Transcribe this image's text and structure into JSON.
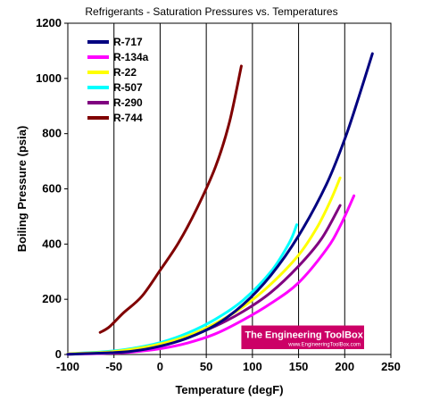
{
  "chart_data": {
    "type": "line",
    "title": "Refrigerants - Saturation Pressures vs. Temperatures",
    "xlabel": "Temperature (degF)",
    "ylabel": "Boiling Pressure (psia)",
    "xlim": [
      -100,
      250
    ],
    "ylim": [
      0,
      1200
    ],
    "x_ticks": [
      -100,
      -50,
      0,
      50,
      100,
      150,
      200,
      250
    ],
    "y_ticks": [
      0,
      200,
      400,
      600,
      800,
      1000,
      1200
    ],
    "grid": "vertical",
    "legend_position": "top-left",
    "series": [
      {
        "name": "R-717",
        "color": "#000080",
        "points": [
          [
            -100,
            1
          ],
          [
            -60,
            5.5
          ],
          [
            -30,
            12
          ],
          [
            0,
            30
          ],
          [
            30,
            60
          ],
          [
            60,
            107
          ],
          [
            90,
            181
          ],
          [
            120,
            287
          ],
          [
            150,
            430
          ],
          [
            180,
            615
          ],
          [
            200,
            780
          ],
          [
            215,
            930
          ],
          [
            230,
            1090
          ]
        ]
      },
      {
        "name": "R-134a",
        "color": "#ff00ff",
        "points": [
          [
            -100,
            1
          ],
          [
            -60,
            4
          ],
          [
            -30,
            9
          ],
          [
            0,
            21
          ],
          [
            30,
            42
          ],
          [
            60,
            75
          ],
          [
            90,
            125
          ],
          [
            120,
            185
          ],
          [
            150,
            260
          ],
          [
            180,
            380
          ],
          [
            195,
            465
          ],
          [
            210,
            575
          ]
        ]
      },
      {
        "name": "R-22",
        "color": "#ffff00",
        "points": [
          [
            -100,
            3
          ],
          [
            -60,
            8
          ],
          [
            -30,
            19
          ],
          [
            0,
            38
          ],
          [
            30,
            68
          ],
          [
            60,
            113
          ],
          [
            90,
            173
          ],
          [
            120,
            255
          ],
          [
            150,
            360
          ],
          [
            170,
            460
          ],
          [
            185,
            560
          ],
          [
            195,
            640
          ]
        ]
      },
      {
        "name": "R-507",
        "color": "#00ffff",
        "points": [
          [
            -100,
            3
          ],
          [
            -60,
            10
          ],
          [
            -30,
            22
          ],
          [
            0,
            43
          ],
          [
            30,
            78
          ],
          [
            60,
            128
          ],
          [
            90,
            197
          ],
          [
            120,
            300
          ],
          [
            140,
            405
          ],
          [
            148,
            470
          ]
        ]
      },
      {
        "name": "R-290",
        "color": "#800080",
        "points": [
          [
            -100,
            2
          ],
          [
            -60,
            7
          ],
          [
            -30,
            17
          ],
          [
            0,
            38
          ],
          [
            30,
            64
          ],
          [
            60,
            103
          ],
          [
            90,
            156
          ],
          [
            120,
            225
          ],
          [
            150,
            320
          ],
          [
            175,
            420
          ],
          [
            195,
            540
          ]
        ]
      },
      {
        "name": "R-744",
        "color": "#800000",
        "points": [
          [
            -65,
            80
          ],
          [
            -55,
            100
          ],
          [
            -40,
            150
          ],
          [
            -20,
            210
          ],
          [
            0,
            305
          ],
          [
            20,
            405
          ],
          [
            40,
            530
          ],
          [
            60,
            680
          ],
          [
            75,
            840
          ],
          [
            88,
            1045
          ]
        ]
      }
    ],
    "watermark": {
      "main": "The Engineering ToolBox",
      "sub": "www.EngineeringToolBox.com"
    }
  }
}
